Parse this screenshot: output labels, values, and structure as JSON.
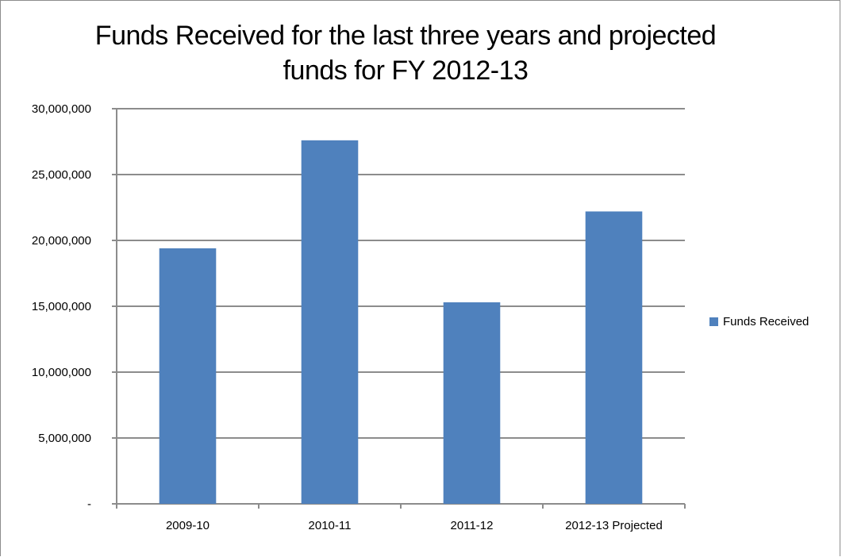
{
  "chart_data": {
    "type": "bar",
    "title": [
      "Funds Received for the last three years and projected",
      "funds for FY 2012-13"
    ],
    "categories": [
      "2009-10",
      "2010-11",
      "2011-12",
      "2012-13 Projected"
    ],
    "series": [
      {
        "name": "Funds Received",
        "values": [
          19400000,
          27600000,
          15300000,
          22200000
        ]
      }
    ],
    "ylim": [
      0,
      30000000
    ],
    "yticks": [
      0,
      5000000,
      10000000,
      15000000,
      20000000,
      25000000,
      30000000
    ],
    "ytick_labels": [
      "-",
      "5,000,000",
      "10,000,000",
      "15,000,000",
      "20,000,000",
      "25,000,000",
      "30,000,000"
    ],
    "xlabel": "",
    "ylabel": "",
    "grid": true,
    "legend_position": "right",
    "colors": {
      "bar": "#4f81bd",
      "grid": "#8c8c8c",
      "axis": "#8c8c8c"
    }
  }
}
